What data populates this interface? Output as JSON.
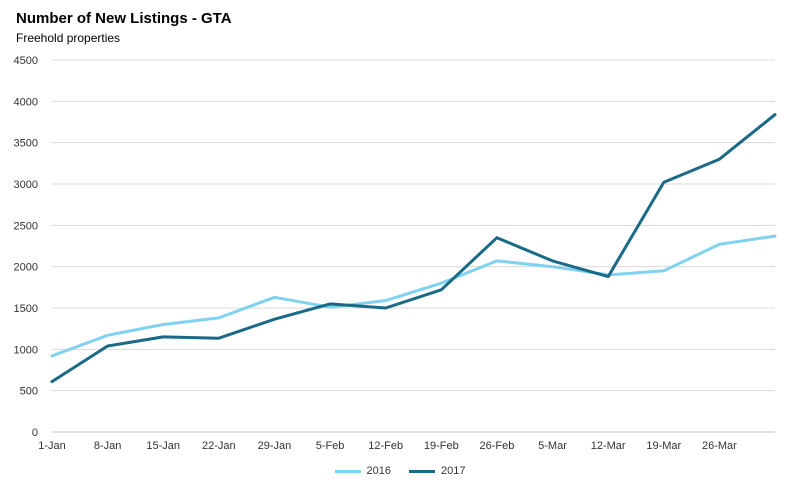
{
  "title": "Number of New Listings - GTA",
  "subtitle": "Freehold properties",
  "chart_data": {
    "type": "line",
    "title": "Number of New Listings - GTA",
    "subtitle": "Freehold properties",
    "categories": [
      "1-Jan",
      "8-Jan",
      "15-Jan",
      "22-Jan",
      "29-Jan",
      "5-Feb",
      "12-Feb",
      "19-Feb",
      "26-Feb",
      "5-Mar",
      "12-Mar",
      "19-Mar",
      "26-Mar",
      ""
    ],
    "x_tick_labels": [
      "1-Jan",
      "8-Jan",
      "15-Jan",
      "22-Jan",
      "29-Jan",
      "5-Feb",
      "12-Feb",
      "19-Feb",
      "26-Feb",
      "5-Mar",
      "12-Mar",
      "19-Mar",
      "26-Mar"
    ],
    "ylim": [
      0,
      4500
    ],
    "y_ticks": [
      0,
      500,
      1000,
      1500,
      2000,
      2500,
      3000,
      3500,
      4000,
      4500
    ],
    "grid": true,
    "legend_position": "bottom",
    "series": [
      {
        "name": "2016",
        "color": "#7fd3f0",
        "values": [
          920,
          1170,
          1300,
          1380,
          1630,
          1510,
          1590,
          1800,
          2070,
          2000,
          1900,
          1950,
          2270,
          2370
        ]
      },
      {
        "name": "2017",
        "color": "#1a6a87",
        "values": [
          610,
          1040,
          1150,
          1135,
          1365,
          1550,
          1500,
          1720,
          2350,
          2070,
          1880,
          3020,
          3300,
          3840
        ]
      }
    ]
  }
}
